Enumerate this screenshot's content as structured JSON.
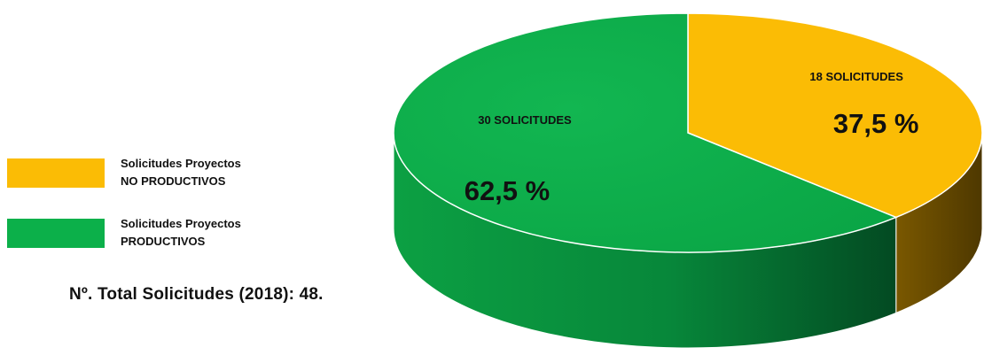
{
  "colors": {
    "no_productivos": "#FBBC05",
    "productivos": "#0CB04A"
  },
  "legend": {
    "items": [
      {
        "line1": "Solicitudes Proyectos",
        "line2": "NO PRODUCTIVOS"
      },
      {
        "line1": "Solicitudes Proyectos",
        "line2": "PRODUCTIVOS"
      }
    ]
  },
  "total_text": "Nº. Total Solicitudes  (2018):  48.",
  "chart_data": {
    "type": "pie",
    "total": 48,
    "slices": [
      {
        "category": "Solicitudes Proyectos NO PRODUCTIVOS",
        "value": 18,
        "count_label": "18  SOLICITUDES",
        "percent_label": "37,5 %",
        "color": "#FBBC05"
      },
      {
        "category": "Solicitudes Proyectos PRODUCTIVOS",
        "value": 30,
        "count_label": "30  SOLICITUDES",
        "percent_label": "62,5 %",
        "color": "#0CB04A"
      }
    ],
    "legend_position": "left"
  }
}
